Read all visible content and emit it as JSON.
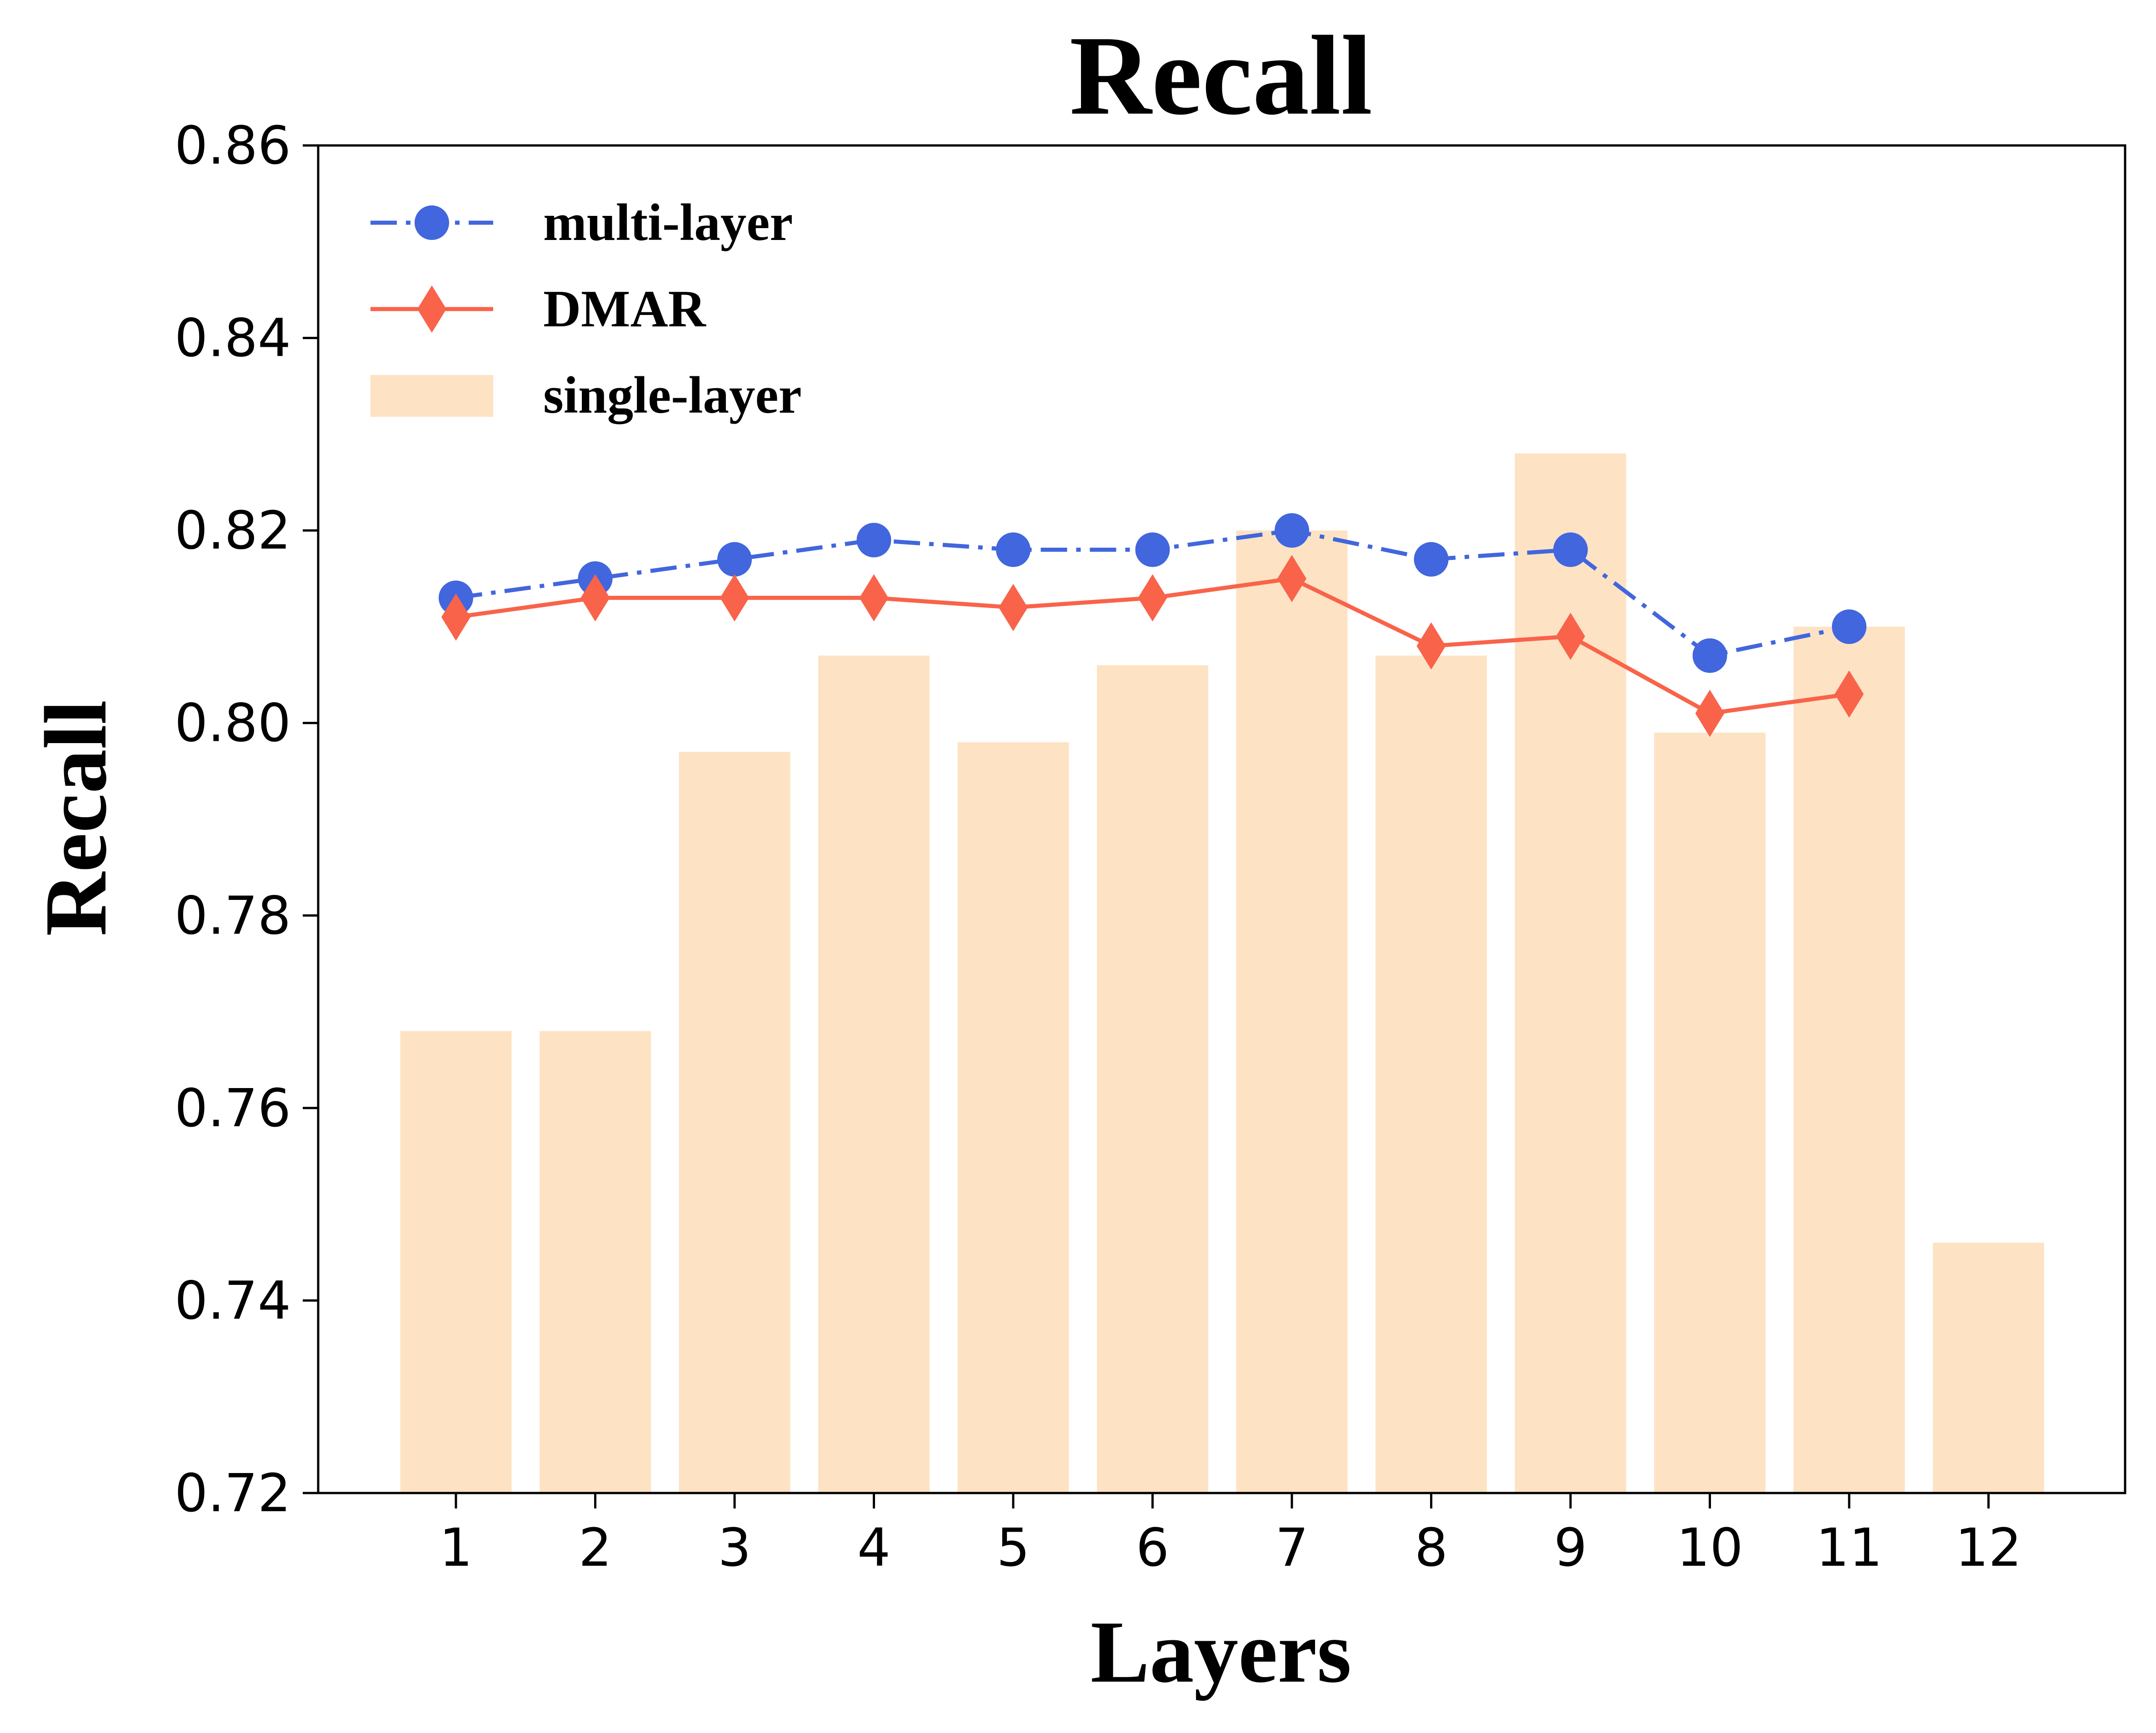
{
  "chart_data": {
    "type": "bar",
    "title": "Recall",
    "xlabel": "Layers",
    "ylabel": "Recall",
    "ylim": [
      0.72,
      0.86
    ],
    "yticks": [
      0.72,
      0.74,
      0.76,
      0.78,
      0.8,
      0.82,
      0.84,
      0.86
    ],
    "ytick_labels": [
      "0.72",
      "0.74",
      "0.76",
      "0.78",
      "0.80",
      "0.82",
      "0.84",
      "0.86"
    ],
    "categories": [
      "1",
      "2",
      "3",
      "4",
      "5",
      "6",
      "7",
      "8",
      "9",
      "10",
      "11",
      "12"
    ],
    "grid": false,
    "legend_position": "top-left",
    "series": [
      {
        "name": "single-layer",
        "kind": "bar",
        "color": "#fde3c4",
        "values": [
          0.768,
          0.768,
          0.797,
          0.807,
          0.798,
          0.806,
          0.82,
          0.807,
          0.828,
          0.799,
          0.81,
          0.746
        ]
      },
      {
        "name": "multi-layer",
        "kind": "line",
        "style": "dashdot",
        "marker": "circle",
        "color": "#4166dd",
        "values": [
          0.813,
          0.815,
          0.817,
          0.819,
          0.818,
          0.818,
          0.82,
          0.817,
          0.818,
          0.807,
          0.81,
          null
        ]
      },
      {
        "name": "DMAR",
        "kind": "line",
        "style": "solid",
        "marker": "thin-diamond",
        "color": "#f9634a",
        "values": [
          0.811,
          0.813,
          0.813,
          0.813,
          0.812,
          0.813,
          0.815,
          0.808,
          0.809,
          0.801,
          0.803,
          null
        ]
      }
    ],
    "legend": [
      "multi-layer",
      "DMAR",
      "single-layer"
    ]
  }
}
